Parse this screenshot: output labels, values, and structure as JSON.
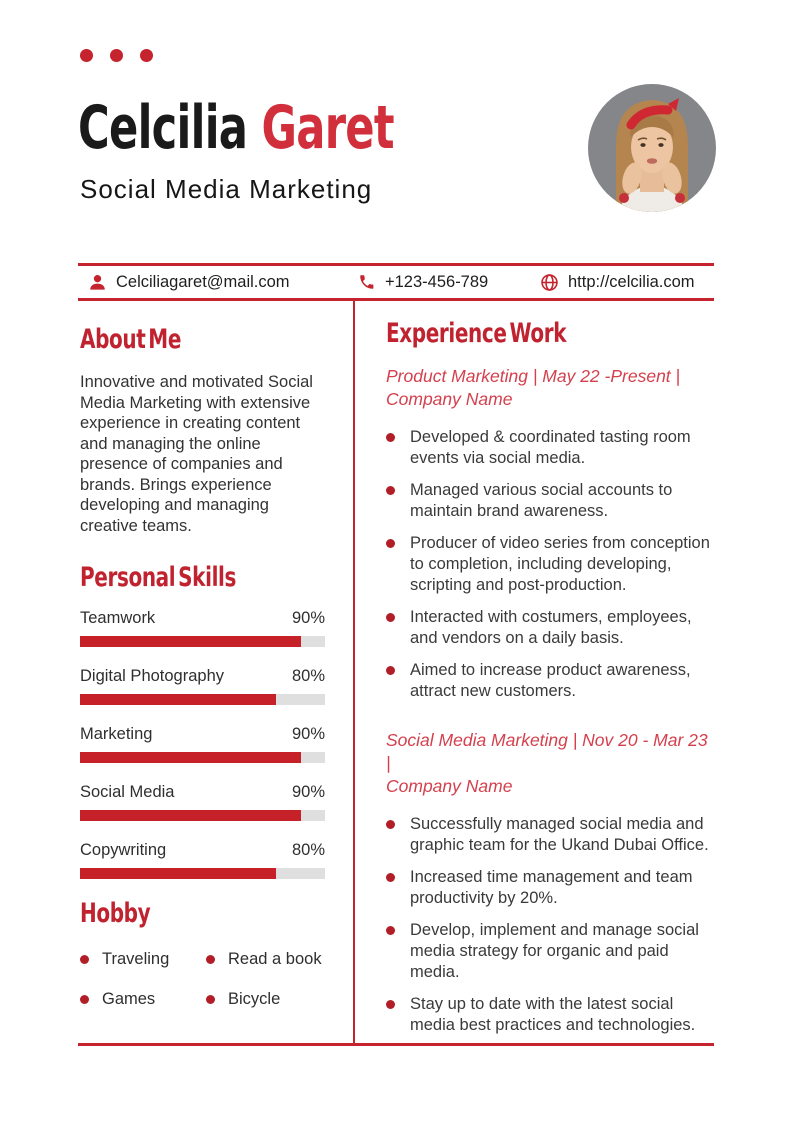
{
  "colors": {
    "accent": "#c5232e",
    "heading": "#c0232f",
    "name-red": "#d02f3b",
    "title-red": "#d4404d",
    "dot-red": "#b21e27",
    "track": "#dfdfdf"
  },
  "header": {
    "first_name": "Celcilia",
    "last_name": "Garet",
    "subtitle": "Social Media Marketing"
  },
  "contact": {
    "email": "Celciliagaret@mail.com",
    "phone": "+123-456-789",
    "website": "http://celcilia.com"
  },
  "about": {
    "heading": "About Me",
    "text": "Innovative and motivated Social\nMedia Marketing with extensive\nexperience in creating content\nand managing the online\npresence of companies and\nbrands. Brings experience\ndeveloping and managing\ncreative teams."
  },
  "skills": {
    "heading": "Personal Skills",
    "items": [
      {
        "label": "Teamwork",
        "value": 90,
        "percent_text": "90%"
      },
      {
        "label": "Digital Photography",
        "value": 80,
        "percent_text": "80%"
      },
      {
        "label": "Marketing",
        "value": 90,
        "percent_text": "90%"
      },
      {
        "label": "Social Media",
        "value": 90,
        "percent_text": "90%"
      },
      {
        "label": "Copywriting",
        "value": 80,
        "percent_text": "80%"
      }
    ]
  },
  "hobby": {
    "heading": "Hobby",
    "items": [
      {
        "label": "Traveling"
      },
      {
        "label": "Read a book"
      },
      {
        "label": "Games"
      },
      {
        "label": "Bicycle"
      }
    ]
  },
  "experience": {
    "heading": "Experience Work",
    "jobs": [
      {
        "title": "Product Marketing | May 22 -Present |\nCompany Name",
        "bullets": [
          {
            "text": "Developed & coordinated tasting room\nevents via social media."
          },
          {
            "text": "Managed various social accounts to\nmaintain brand awareness."
          },
          {
            "text": "Producer of video series from conception\nto completion, including developing,\nscripting and post-production."
          },
          {
            "text": "Interacted with costumers, employees,\nand vendors on a daily basis."
          },
          {
            "text": "Aimed to increase product awareness,\nattract new customers."
          }
        ]
      },
      {
        "title": "Social Media Marketing | Nov 20 - Mar 23 |\nCompany Name",
        "bullets": [
          {
            "text": "Successfully managed social media and\ngraphic team for the Ukand Dubai Office."
          },
          {
            "text": "Increased time management and team\nproductivity by 20%."
          },
          {
            "text": "Develop, implement and manage social\nmedia strategy for organic and paid\nmedia."
          },
          {
            "text": "Stay up to date with the latest social\nmedia best practices and technologies."
          }
        ]
      }
    ]
  }
}
